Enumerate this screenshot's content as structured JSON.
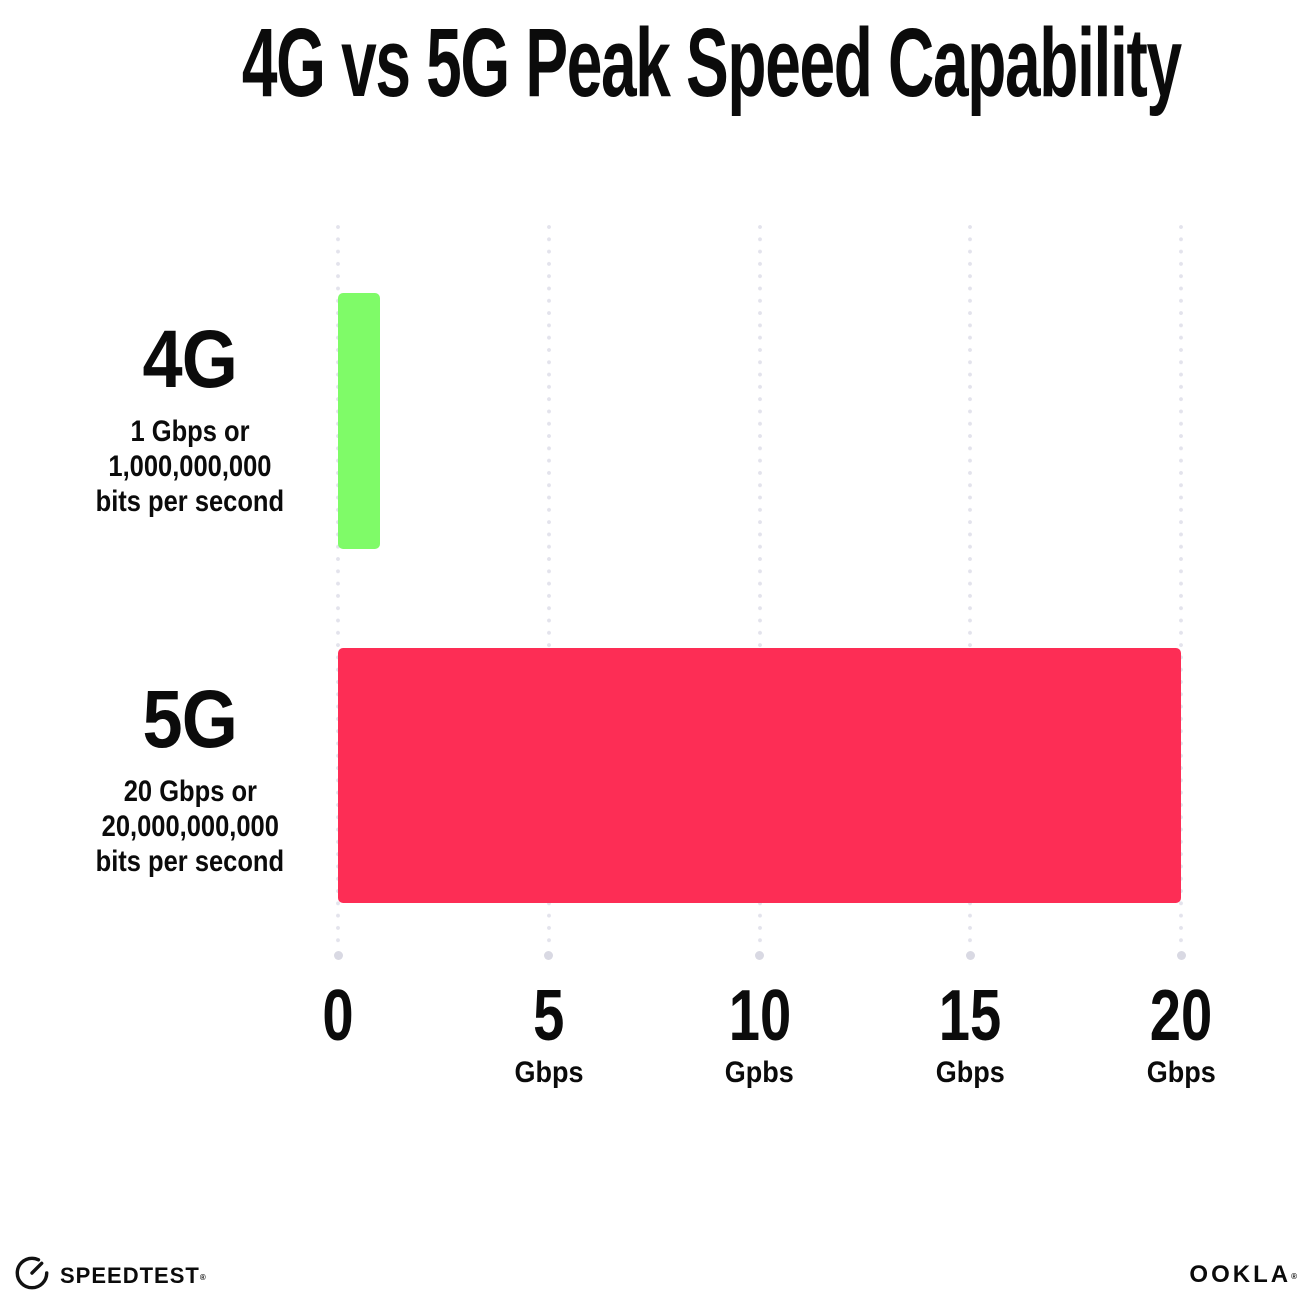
{
  "title": "4G vs 5G Peak Speed Capability",
  "chart_data": {
    "type": "bar",
    "orientation": "horizontal",
    "title": "4G vs 5G Peak Speed Capability",
    "xlabel": "",
    "ylabel": "",
    "xlim": [
      0,
      20
    ],
    "grid": "vertical dotted gridlines at 0, 5, 10, 15, 20 with round end dot at bottom",
    "legend": "none",
    "categories": [
      "4G",
      "5G"
    ],
    "values": [
      1,
      20
    ],
    "bar_colors": [
      "#7FFB68",
      "#FD2D55"
    ],
    "rows": [
      {
        "label": "4G",
        "sublabel_lines": [
          "1 Gbps or",
          "1,000,000,000",
          "bits per second"
        ],
        "value_gbps": 1
      },
      {
        "label": "5G",
        "sublabel_lines": [
          "20 Gbps or",
          "20,000,000,000",
          "bits per second"
        ],
        "value_gbps": 20
      }
    ],
    "x_ticks": [
      {
        "number": "0",
        "unit": ""
      },
      {
        "number": "5",
        "unit": "Gbps"
      },
      {
        "number": "10",
        "unit": "Gpbs"
      },
      {
        "number": "15",
        "unit": "Gbps"
      },
      {
        "number": "20",
        "unit": "Gbps"
      }
    ]
  },
  "footer": {
    "speedtest_wordmark": "SPEEDTEST",
    "speedtest_trademark": "®",
    "ookla_wordmark": "OOKLA",
    "ookla_trademark": "®"
  },
  "icons": {
    "speedometer": "speedtest-gauge-icon"
  },
  "colors": {
    "background": "#FFFFFF",
    "text": "#0B0B0B",
    "bar_4g_green": "#7FFB68",
    "bar_5g_pink": "#FD2D55",
    "gridline_dot": "#E3E3EC",
    "axis_end_dot": "#D9D9E3"
  }
}
